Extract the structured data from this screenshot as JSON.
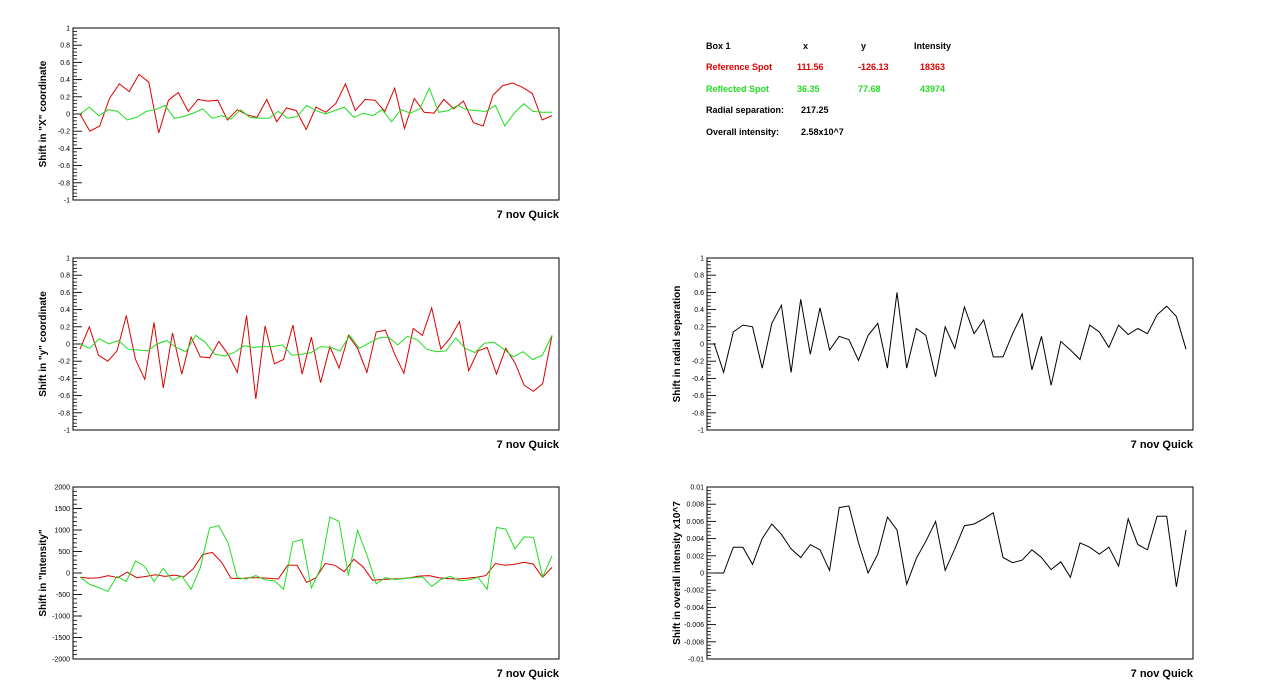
{
  "info_box": {
    "box_label": "Box 1",
    "col_x": "x",
    "col_y": "y",
    "col_intensity": "Intensity",
    "reference": {
      "label": "Reference Spot",
      "x": "111.56",
      "y": "-126.13",
      "intensity": "18363"
    },
    "reflected": {
      "label": "Reflected Spot",
      "x": "36.35",
      "y": "77.68",
      "intensity": "43974"
    },
    "radial_label": "Radial separation:",
    "radial_value": "217.25",
    "overall_label": "Overall intensity:",
    "overall_value": "2.58x10^7"
  },
  "colors": {
    "reference": "#dd0000",
    "reflected": "#22dd22",
    "single": "#000000"
  },
  "chart_data": [
    {
      "id": "x-shift",
      "type": "line",
      "title": "",
      "ylabel": "Shift in \"X\" coordinate",
      "xlabel": "7 nov Quick",
      "ylim": [
        -1,
        1
      ],
      "yticks": [
        {
          "v": -1,
          "t": "-1"
        },
        {
          "v": -0.8,
          "t": "-0.8"
        },
        {
          "v": -0.6,
          "t": "-0.6"
        },
        {
          "v": -0.4,
          "t": "-0.4"
        },
        {
          "v": -0.2,
          "t": "-0.2"
        },
        {
          "v": 0,
          "t": "0"
        },
        {
          "v": 0.2,
          "t": "0.2"
        },
        {
          "v": 0.4,
          "t": "0.4"
        },
        {
          "v": 0.6,
          "t": "0.6"
        },
        {
          "v": 0.8,
          "t": "0.8"
        },
        {
          "v": 1,
          "t": "1"
        }
      ],
      "series": [
        {
          "color": "reference",
          "values": [
            0,
            -0.2,
            -0.14,
            0.18,
            0.35,
            0.26,
            0.46,
            0.37,
            -0.22,
            0.16,
            0.25,
            0.03,
            0.17,
            0.15,
            0.16,
            -0.07,
            0.05,
            -0.01,
            -0.04,
            0.17,
            -0.09,
            0.07,
            0.04,
            -0.18,
            0.08,
            0.02,
            0.12,
            0.35,
            0.04,
            0.17,
            0.16,
            0.03,
            0.3,
            -0.17,
            0.18,
            0.02,
            0.01,
            0.17,
            0.06,
            0.15,
            -0.1,
            -0.14,
            0.22,
            0.33,
            0.36,
            0.31,
            0.24,
            -0.07,
            -0.02
          ]
        },
        {
          "color": "reflected",
          "values": [
            0,
            0.08,
            -0.02,
            0.05,
            0.03,
            -0.07,
            -0.04,
            0.03,
            0.05,
            0.1,
            -0.05,
            -0.03,
            0.01,
            0.06,
            -0.05,
            -0.02,
            -0.06,
            0.05,
            -0.04,
            -0.05,
            -0.05,
            0.03,
            -0.05,
            -0.03,
            0.1,
            0.04,
            0,
            0.04,
            0.08,
            -0.04,
            0.01,
            -0.02,
            0.05,
            -0.09,
            0.05,
            0.01,
            0.06,
            0.3,
            0.02,
            0.04,
            0.1,
            0.05,
            0.04,
            0.03,
            0.1,
            -0.14,
            0.01,
            0.12,
            0.03,
            0.02,
            0.02
          ]
        }
      ]
    },
    {
      "id": "y-shift",
      "type": "line",
      "title": "",
      "ylabel": "Shift in \"y\" coordinate",
      "xlabel": "7 nov Quick",
      "ylim": [
        -1,
        1
      ],
      "yticks": [
        {
          "v": -1,
          "t": "-1"
        },
        {
          "v": -0.8,
          "t": "-0.8"
        },
        {
          "v": -0.6,
          "t": "-0.6"
        },
        {
          "v": -0.4,
          "t": "-0.4"
        },
        {
          "v": -0.2,
          "t": "-0.2"
        },
        {
          "v": 0,
          "t": "0"
        },
        {
          "v": 0.2,
          "t": "0.2"
        },
        {
          "v": 0.4,
          "t": "0.4"
        },
        {
          "v": 0.6,
          "t": "0.6"
        },
        {
          "v": 0.8,
          "t": "0.8"
        },
        {
          "v": 1,
          "t": "1"
        }
      ],
      "series": [
        {
          "color": "reference",
          "values": [
            -0.06,
            0.2,
            -0.13,
            -0.2,
            -0.08,
            0.33,
            -0.18,
            -0.41,
            0.25,
            -0.51,
            0.13,
            -0.35,
            0.08,
            -0.15,
            -0.16,
            0.03,
            -0.12,
            -0.33,
            0.33,
            -0.64,
            0.21,
            -0.23,
            -0.18,
            0.22,
            -0.35,
            0.08,
            -0.45,
            -0.03,
            -0.28,
            0.1,
            -0.05,
            -0.33,
            0.14,
            0.16,
            -0.12,
            -0.34,
            0.18,
            0.1,
            0.42,
            -0.06,
            0.07,
            0.26,
            -0.31,
            -0.08,
            -0.04,
            -0.35,
            -0.05,
            -0.22,
            -0.48,
            -0.55,
            -0.46,
            0.1
          ]
        },
        {
          "color": "reflected",
          "values": [
            0,
            -0.05,
            0.06,
            0,
            0.04,
            -0.06,
            -0.07,
            -0.08,
            0,
            0.04,
            -0.04,
            -0.09,
            0.1,
            0.02,
            -0.12,
            -0.14,
            -0.1,
            -0.02,
            -0.04,
            -0.03,
            -0.03,
            -0.01,
            -0.13,
            -0.12,
            -0.1,
            -0.03,
            -0.04,
            -0.08,
            0.1,
            -0.05,
            0.01,
            0.07,
            0.08,
            -0.01,
            0.09,
            0.05,
            -0.06,
            -0.09,
            -0.08,
            0.07,
            -0.05,
            -0.1,
            0.01,
            0.02,
            -0.06,
            -0.15,
            -0.09,
            -0.18,
            -0.13,
            0.1
          ]
        }
      ]
    },
    {
      "id": "intensity-shift",
      "type": "line",
      "title": "",
      "ylabel": "Shift in \"Intensity\"",
      "xlabel": "7 nov Quick",
      "ylim": [
        -2000,
        2000
      ],
      "yticks": [
        {
          "v": -2000,
          "t": "-2000"
        },
        {
          "v": -1500,
          "t": "-1500"
        },
        {
          "v": -1000,
          "t": "-1000"
        },
        {
          "v": -500,
          "t": "-500"
        },
        {
          "v": 0,
          "t": "0"
        },
        {
          "v": 500,
          "t": "500"
        },
        {
          "v": 1000,
          "t": "1000"
        },
        {
          "v": 1500,
          "t": "1500"
        },
        {
          "v": 2000,
          "t": "2000"
        }
      ],
      "series": [
        {
          "color": "reference",
          "values": [
            -100,
            -120,
            -110,
            -60,
            -110,
            20,
            -110,
            -80,
            -40,
            -80,
            -50,
            -90,
            100,
            430,
            480,
            250,
            -120,
            -130,
            -110,
            -110,
            -120,
            -140,
            180,
            180,
            -220,
            -110,
            220,
            180,
            30,
            320,
            140,
            -170,
            -150,
            -140,
            -130,
            -110,
            -70,
            -60,
            -110,
            -130,
            -140,
            -120,
            -100,
            -60,
            220,
            180,
            200,
            250,
            210,
            -100,
            130
          ]
        },
        {
          "color": "reflected",
          "values": [
            -90,
            -260,
            -340,
            -430,
            -80,
            -200,
            280,
            150,
            -200,
            110,
            -170,
            -70,
            -380,
            120,
            1050,
            1100,
            700,
            -110,
            -140,
            -60,
            -160,
            -180,
            -380,
            720,
            780,
            -350,
            110,
            1300,
            1200,
            -60,
            990,
            420,
            -250,
            -110,
            -150,
            -130,
            -110,
            -90,
            -310,
            -150,
            -80,
            -180,
            -160,
            -100,
            -380,
            1060,
            1020,
            560,
            840,
            830,
            -90,
            400
          ]
        }
      ]
    },
    {
      "id": "radial-shift",
      "type": "line",
      "title": "",
      "ylabel": "Shift in radial separation",
      "xlabel": "7 nov Quick",
      "ylim": [
        -1,
        1
      ],
      "yticks": [
        {
          "v": -1,
          "t": "-1"
        },
        {
          "v": -0.8,
          "t": "-0.8"
        },
        {
          "v": -0.6,
          "t": "-0.6"
        },
        {
          "v": -0.4,
          "t": "-0.4"
        },
        {
          "v": -0.2,
          "t": "-0.2"
        },
        {
          "v": 0,
          "t": "0"
        },
        {
          "v": 0.2,
          "t": "0.2"
        },
        {
          "v": 0.4,
          "t": "0.4"
        },
        {
          "v": 0.6,
          "t": "0.6"
        },
        {
          "v": 0.8,
          "t": "0.8"
        },
        {
          "v": 1,
          "t": "1"
        }
      ],
      "series": [
        {
          "color": "single",
          "values": [
            0.01,
            -0.33,
            0.14,
            0.22,
            0.2,
            -0.28,
            0.24,
            0.45,
            -0.33,
            0.52,
            -0.12,
            0.42,
            -0.07,
            0.09,
            0.05,
            -0.19,
            0.1,
            0.24,
            -0.28,
            0.6,
            -0.28,
            0.18,
            0.1,
            -0.38,
            0.2,
            -0.05,
            0.43,
            0.12,
            0.28,
            -0.15,
            -0.15,
            0.12,
            0.35,
            -0.3,
            0.09,
            -0.48,
            0.03,
            -0.07,
            -0.18,
            0.22,
            0.14,
            -0.04,
            0.22,
            0.11,
            0.18,
            0.12,
            0.34,
            0.44,
            0.32,
            -0.06
          ]
        }
      ]
    },
    {
      "id": "overall-intensity-shift",
      "type": "line",
      "title": "",
      "ylabel": "Shift in overall intensity x10^7",
      "xlabel": "7 nov Quick",
      "ylim": [
        -0.01,
        0.01
      ],
      "yticks": [
        {
          "v": -0.01,
          "t": "-0.01"
        },
        {
          "v": -0.008,
          "t": "-0.008"
        },
        {
          "v": -0.006,
          "t": "-0.006"
        },
        {
          "v": -0.004,
          "t": "-0.004"
        },
        {
          "v": -0.002,
          "t": "-0.002"
        },
        {
          "v": 0,
          "t": "0"
        },
        {
          "v": 0.002,
          "t": "0.002"
        },
        {
          "v": 0.004,
          "t": "0.004"
        },
        {
          "v": 0.006,
          "t": "0.006"
        },
        {
          "v": 0.008,
          "t": "0.008"
        },
        {
          "v": 0.01,
          "t": "0.01"
        }
      ],
      "series": [
        {
          "color": "single",
          "values": [
            0,
            0,
            0.003,
            0.003,
            0.001,
            0.004,
            0.0057,
            0.0045,
            0.0028,
            0.0018,
            0.0033,
            0.0027,
            0.0003,
            0.0076,
            0.0078,
            0.0035,
            0,
            0.0022,
            0.0065,
            0.005,
            -0.0013,
            0.0017,
            0.0037,
            0.006,
            0.0003,
            0.0028,
            0.0055,
            0.0057,
            0.0063,
            0.007,
            0.0018,
            0.0012,
            0.0015,
            0.0027,
            0.0018,
            0.0004,
            0.0013,
            -0.0005,
            0.0035,
            0.003,
            0.0022,
            0.003,
            0.0008,
            0.0063,
            0.0033,
            0.0027,
            0.0066,
            0.0066,
            -0.0016,
            0.005
          ]
        }
      ]
    }
  ]
}
